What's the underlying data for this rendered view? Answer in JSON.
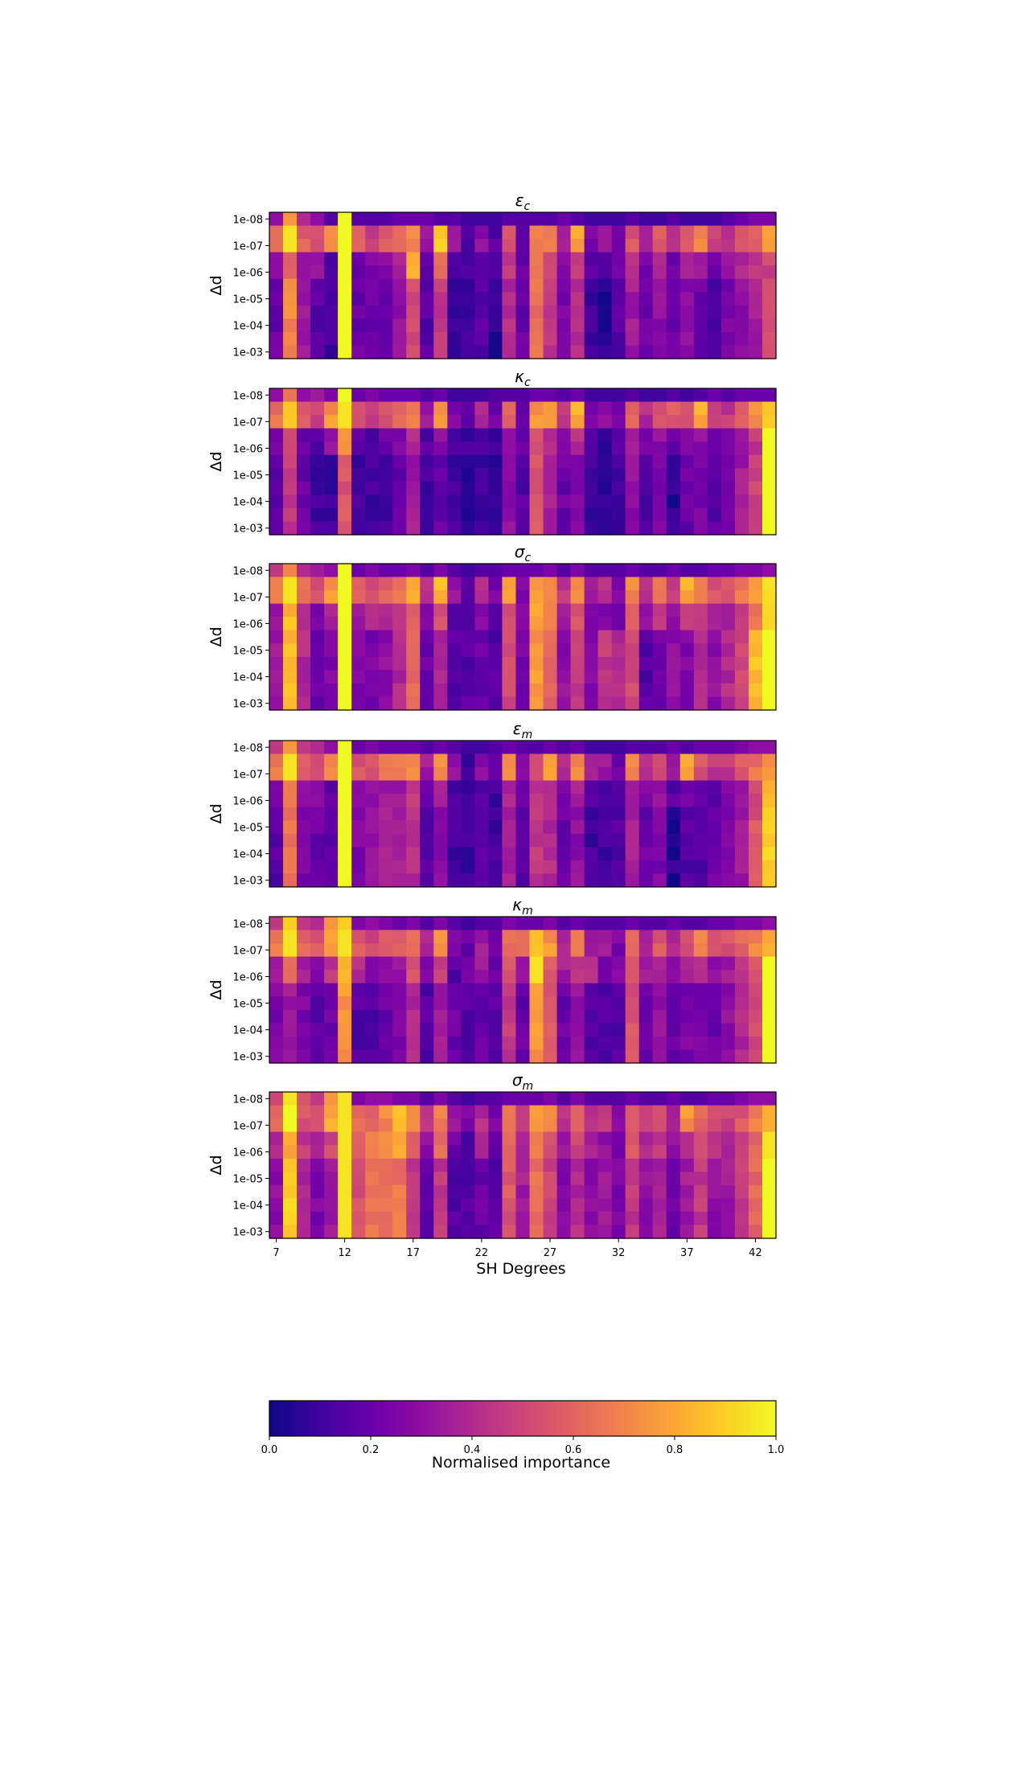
{
  "chart_data": {
    "type": "heatmap",
    "colormap": "plasma",
    "x_label": "SH Degrees",
    "x_ticks": [
      7,
      12,
      17,
      22,
      27,
      32,
      37,
      42
    ],
    "x_range": [
      7,
      44
    ],
    "y_label": "Δd",
    "y_ticks": [
      "1e-08",
      "1e-07",
      "1e-06",
      "1e-05",
      "1e-04",
      "1e-03"
    ],
    "rows_per_panel": 11,
    "colorbar": {
      "label": "Normalised importance",
      "ticks": [
        "0.0",
        "0.2",
        "0.4",
        "0.6",
        "0.8",
        "1.0"
      ],
      "range": [
        0,
        1
      ]
    },
    "panels": [
      {
        "title_sym": "ε",
        "title_sub": "c",
        "bands": [
          [
            0.3,
            0.75,
            0.4,
            0.3,
            0.15,
            1.0,
            0.15,
            0.15,
            0.15,
            0.2,
            0.2,
            0.2,
            0.15,
            0.15,
            0.1,
            0.1,
            0.1,
            0.15,
            0.15,
            0.15,
            0.15,
            0.2,
            0.15,
            0.1,
            0.1,
            0.1,
            0.15,
            0.1,
            0.1,
            0.15,
            0.1,
            0.1,
            0.1,
            0.15,
            0.2,
            0.25,
            0.25
          ],
          [
            0.65,
            0.95,
            0.6,
            0.5,
            0.7,
            1.0,
            0.55,
            0.45,
            0.55,
            0.6,
            0.7,
            0.35,
            0.9,
            0.3,
            0.1,
            0.3,
            0.15,
            0.55,
            0.2,
            0.7,
            0.7,
            0.4,
            0.8,
            0.25,
            0.3,
            0.2,
            0.55,
            0.35,
            0.55,
            0.4,
            0.55,
            0.7,
            0.5,
            0.45,
            0.55,
            0.6,
            0.75
          ],
          [
            0.25,
            0.6,
            0.3,
            0.3,
            0.15,
            1.0,
            0.2,
            0.25,
            0.3,
            0.4,
            0.85,
            0.2,
            0.6,
            0.15,
            0.1,
            0.2,
            0.1,
            0.45,
            0.2,
            0.7,
            0.55,
            0.3,
            0.5,
            0.15,
            0.15,
            0.2,
            0.4,
            0.25,
            0.4,
            0.2,
            0.35,
            0.35,
            0.2,
            0.3,
            0.4,
            0.45,
            0.5
          ],
          [
            0.2,
            0.7,
            0.35,
            0.15,
            0.1,
            1.0,
            0.2,
            0.2,
            0.2,
            0.3,
            0.5,
            0.15,
            0.45,
            0.1,
            0.1,
            0.15,
            0.05,
            0.4,
            0.2,
            0.65,
            0.45,
            0.25,
            0.4,
            0.1,
            0.05,
            0.15,
            0.35,
            0.2,
            0.3,
            0.2,
            0.3,
            0.2,
            0.15,
            0.25,
            0.3,
            0.35,
            0.55
          ]
        ]
      },
      {
        "title_sym": "κ",
        "title_sub": "c",
        "bands": [
          [
            0.3,
            0.65,
            0.3,
            0.35,
            0.25,
            1.0,
            0.2,
            0.25,
            0.2,
            0.2,
            0.2,
            0.15,
            0.2,
            0.1,
            0.1,
            0.1,
            0.15,
            0.15,
            0.15,
            0.2,
            0.2,
            0.15,
            0.2,
            0.1,
            0.1,
            0.1,
            0.15,
            0.1,
            0.1,
            0.15,
            0.1,
            0.15,
            0.2,
            0.15,
            0.2,
            0.2,
            0.2
          ],
          [
            0.65,
            0.9,
            0.6,
            0.5,
            0.75,
            0.95,
            0.55,
            0.45,
            0.55,
            0.6,
            0.7,
            0.35,
            0.75,
            0.25,
            0.15,
            0.4,
            0.2,
            0.6,
            0.2,
            0.75,
            0.75,
            0.45,
            0.8,
            0.25,
            0.3,
            0.2,
            0.6,
            0.4,
            0.55,
            0.55,
            0.5,
            0.8,
            0.45,
            0.45,
            0.55,
            0.75,
            0.9
          ],
          [
            0.2,
            0.55,
            0.2,
            0.15,
            0.3,
            0.7,
            0.15,
            0.15,
            0.2,
            0.25,
            0.4,
            0.15,
            0.3,
            0.1,
            0.1,
            0.15,
            0.1,
            0.35,
            0.2,
            0.55,
            0.4,
            0.25,
            0.4,
            0.1,
            0.1,
            0.15,
            0.35,
            0.2,
            0.3,
            0.2,
            0.25,
            0.3,
            0.2,
            0.25,
            0.35,
            0.45,
            1.0
          ],
          [
            0.15,
            0.45,
            0.2,
            0.1,
            0.1,
            0.55,
            0.1,
            0.1,
            0.1,
            0.2,
            0.35,
            0.1,
            0.2,
            0.1,
            0.05,
            0.1,
            0.05,
            0.3,
            0.15,
            0.55,
            0.35,
            0.2,
            0.25,
            0.1,
            0.05,
            0.1,
            0.3,
            0.15,
            0.25,
            0.05,
            0.2,
            0.25,
            0.15,
            0.2,
            0.35,
            0.5,
            1.0
          ]
        ]
      },
      {
        "title_sym": "σ",
        "title_sub": "c",
        "bands": [
          [
            0.45,
            0.7,
            0.4,
            0.35,
            0.3,
            1.0,
            0.2,
            0.25,
            0.2,
            0.2,
            0.25,
            0.15,
            0.25,
            0.15,
            0.1,
            0.15,
            0.15,
            0.2,
            0.2,
            0.2,
            0.25,
            0.15,
            0.25,
            0.15,
            0.15,
            0.15,
            0.2,
            0.15,
            0.15,
            0.2,
            0.15,
            0.15,
            0.2,
            0.2,
            0.25,
            0.25,
            0.3
          ],
          [
            0.7,
            0.95,
            0.65,
            0.55,
            0.75,
            1.0,
            0.6,
            0.55,
            0.6,
            0.65,
            0.8,
            0.45,
            0.85,
            0.3,
            0.2,
            0.4,
            0.25,
            0.75,
            0.25,
            0.8,
            0.75,
            0.45,
            0.7,
            0.35,
            0.4,
            0.25,
            0.7,
            0.45,
            0.65,
            0.45,
            0.8,
            0.65,
            0.55,
            0.55,
            0.65,
            0.8,
            0.9
          ],
          [
            0.35,
            0.85,
            0.4,
            0.25,
            0.35,
            1.0,
            0.35,
            0.4,
            0.4,
            0.45,
            0.6,
            0.25,
            0.55,
            0.15,
            0.15,
            0.25,
            0.15,
            0.55,
            0.25,
            0.8,
            0.65,
            0.35,
            0.55,
            0.25,
            0.25,
            0.25,
            0.55,
            0.35,
            0.45,
            0.3,
            0.45,
            0.5,
            0.35,
            0.4,
            0.5,
            0.65,
            0.9
          ],
          [
            0.35,
            0.85,
            0.4,
            0.2,
            0.25,
            1.0,
            0.25,
            0.25,
            0.3,
            0.4,
            0.6,
            0.2,
            0.4,
            0.15,
            0.15,
            0.2,
            0.15,
            0.5,
            0.25,
            0.75,
            0.6,
            0.3,
            0.45,
            0.25,
            0.45,
            0.4,
            0.5,
            0.15,
            0.2,
            0.3,
            0.25,
            0.4,
            0.3,
            0.4,
            0.5,
            0.85,
            1.0
          ]
        ]
      },
      {
        "title_sym": "ε",
        "title_sub": "m",
        "bands": [
          [
            0.45,
            0.75,
            0.45,
            0.4,
            0.3,
            1.0,
            0.2,
            0.25,
            0.2,
            0.2,
            0.2,
            0.15,
            0.2,
            0.15,
            0.1,
            0.1,
            0.15,
            0.2,
            0.15,
            0.15,
            0.2,
            0.15,
            0.2,
            0.1,
            0.1,
            0.1,
            0.15,
            0.15,
            0.15,
            0.2,
            0.15,
            0.2,
            0.2,
            0.2,
            0.25,
            0.3,
            0.3
          ],
          [
            0.65,
            0.95,
            0.55,
            0.5,
            0.7,
            1.0,
            0.55,
            0.55,
            0.65,
            0.7,
            0.7,
            0.35,
            0.75,
            0.3,
            0.1,
            0.3,
            0.15,
            0.7,
            0.3,
            0.5,
            0.75,
            0.4,
            0.7,
            0.35,
            0.35,
            0.2,
            0.7,
            0.4,
            0.5,
            0.35,
            0.8,
            0.55,
            0.45,
            0.45,
            0.55,
            0.65,
            0.75
          ],
          [
            0.25,
            0.65,
            0.3,
            0.25,
            0.2,
            1.0,
            0.3,
            0.3,
            0.35,
            0.35,
            0.45,
            0.2,
            0.35,
            0.1,
            0.1,
            0.15,
            0.1,
            0.4,
            0.2,
            0.45,
            0.4,
            0.25,
            0.35,
            0.15,
            0.15,
            0.15,
            0.35,
            0.25,
            0.3,
            0.15,
            0.2,
            0.15,
            0.15,
            0.25,
            0.35,
            0.5,
            0.85
          ],
          [
            0.15,
            0.65,
            0.25,
            0.2,
            0.15,
            1.0,
            0.25,
            0.3,
            0.35,
            0.35,
            0.4,
            0.15,
            0.3,
            0.1,
            0.1,
            0.15,
            0.1,
            0.35,
            0.15,
            0.45,
            0.4,
            0.2,
            0.3,
            0.1,
            0.1,
            0.15,
            0.35,
            0.2,
            0.25,
            0.05,
            0.15,
            0.15,
            0.2,
            0.25,
            0.35,
            0.55,
            0.9
          ]
        ]
      },
      {
        "title_sym": "κ",
        "title_sub": "m",
        "bands": [
          [
            0.45,
            0.9,
            0.45,
            0.4,
            0.75,
            0.9,
            0.25,
            0.3,
            0.25,
            0.2,
            0.25,
            0.15,
            0.25,
            0.15,
            0.1,
            0.15,
            0.15,
            0.25,
            0.2,
            0.2,
            0.25,
            0.15,
            0.2,
            0.15,
            0.15,
            0.15,
            0.2,
            0.15,
            0.15,
            0.2,
            0.15,
            0.15,
            0.2,
            0.2,
            0.25,
            0.25,
            0.3
          ],
          [
            0.65,
            0.95,
            0.6,
            0.55,
            0.75,
            0.95,
            0.55,
            0.5,
            0.55,
            0.6,
            0.65,
            0.4,
            0.75,
            0.25,
            0.2,
            0.35,
            0.2,
            0.65,
            0.6,
            0.85,
            0.75,
            0.4,
            0.7,
            0.35,
            0.35,
            0.25,
            0.6,
            0.4,
            0.55,
            0.4,
            0.55,
            0.7,
            0.55,
            0.55,
            0.6,
            0.7,
            0.8
          ],
          [
            0.35,
            0.6,
            0.35,
            0.25,
            0.45,
            0.8,
            0.4,
            0.3,
            0.3,
            0.35,
            0.55,
            0.25,
            0.5,
            0.15,
            0.2,
            0.35,
            0.2,
            0.55,
            0.3,
            0.95,
            0.55,
            0.35,
            0.45,
            0.4,
            0.25,
            0.25,
            0.6,
            0.35,
            0.4,
            0.3,
            0.35,
            0.45,
            0.3,
            0.35,
            0.45,
            0.55,
            1.0
          ],
          [
            0.25,
            0.35,
            0.25,
            0.15,
            0.2,
            0.75,
            0.15,
            0.15,
            0.2,
            0.25,
            0.4,
            0.15,
            0.35,
            0.2,
            0.15,
            0.2,
            0.15,
            0.45,
            0.2,
            0.75,
            0.55,
            0.2,
            0.3,
            0.15,
            0.15,
            0.15,
            0.55,
            0.2,
            0.3,
            0.2,
            0.25,
            0.25,
            0.2,
            0.3,
            0.4,
            0.5,
            1.0
          ]
        ]
      },
      {
        "title_sym": "σ",
        "title_sub": "m",
        "bands": [
          [
            0.5,
            0.95,
            0.55,
            0.45,
            0.75,
            0.95,
            0.25,
            0.3,
            0.3,
            0.25,
            0.25,
            0.15,
            0.25,
            0.15,
            0.1,
            0.15,
            0.15,
            0.2,
            0.2,
            0.2,
            0.25,
            0.15,
            0.25,
            0.15,
            0.15,
            0.15,
            0.2,
            0.15,
            0.15,
            0.2,
            0.15,
            0.15,
            0.2,
            0.2,
            0.25,
            0.3,
            0.3
          ],
          [
            0.65,
            1.0,
            0.55,
            0.55,
            0.8,
            0.95,
            0.6,
            0.6,
            0.7,
            0.85,
            0.7,
            0.45,
            0.7,
            0.3,
            0.25,
            0.4,
            0.25,
            0.65,
            0.5,
            0.75,
            0.7,
            0.45,
            0.55,
            0.4,
            0.45,
            0.3,
            0.55,
            0.5,
            0.55,
            0.4,
            0.75,
            0.6,
            0.55,
            0.5,
            0.55,
            0.7,
            0.8
          ],
          [
            0.4,
            0.8,
            0.45,
            0.35,
            0.5,
            0.95,
            0.55,
            0.65,
            0.7,
            0.8,
            0.55,
            0.3,
            0.6,
            0.2,
            0.15,
            0.35,
            0.2,
            0.6,
            0.35,
            0.65,
            0.55,
            0.35,
            0.5,
            0.35,
            0.3,
            0.25,
            0.55,
            0.4,
            0.45,
            0.3,
            0.45,
            0.55,
            0.45,
            0.4,
            0.45,
            0.6,
            0.95
          ],
          [
            0.3,
            0.9,
            0.4,
            0.25,
            0.35,
            0.95,
            0.55,
            0.65,
            0.65,
            0.65,
            0.45,
            0.2,
            0.45,
            0.15,
            0.15,
            0.2,
            0.15,
            0.55,
            0.35,
            0.65,
            0.5,
            0.25,
            0.4,
            0.3,
            0.35,
            0.25,
            0.45,
            0.3,
            0.35,
            0.2,
            0.35,
            0.45,
            0.3,
            0.35,
            0.45,
            0.6,
            1.0
          ]
        ]
      }
    ]
  }
}
